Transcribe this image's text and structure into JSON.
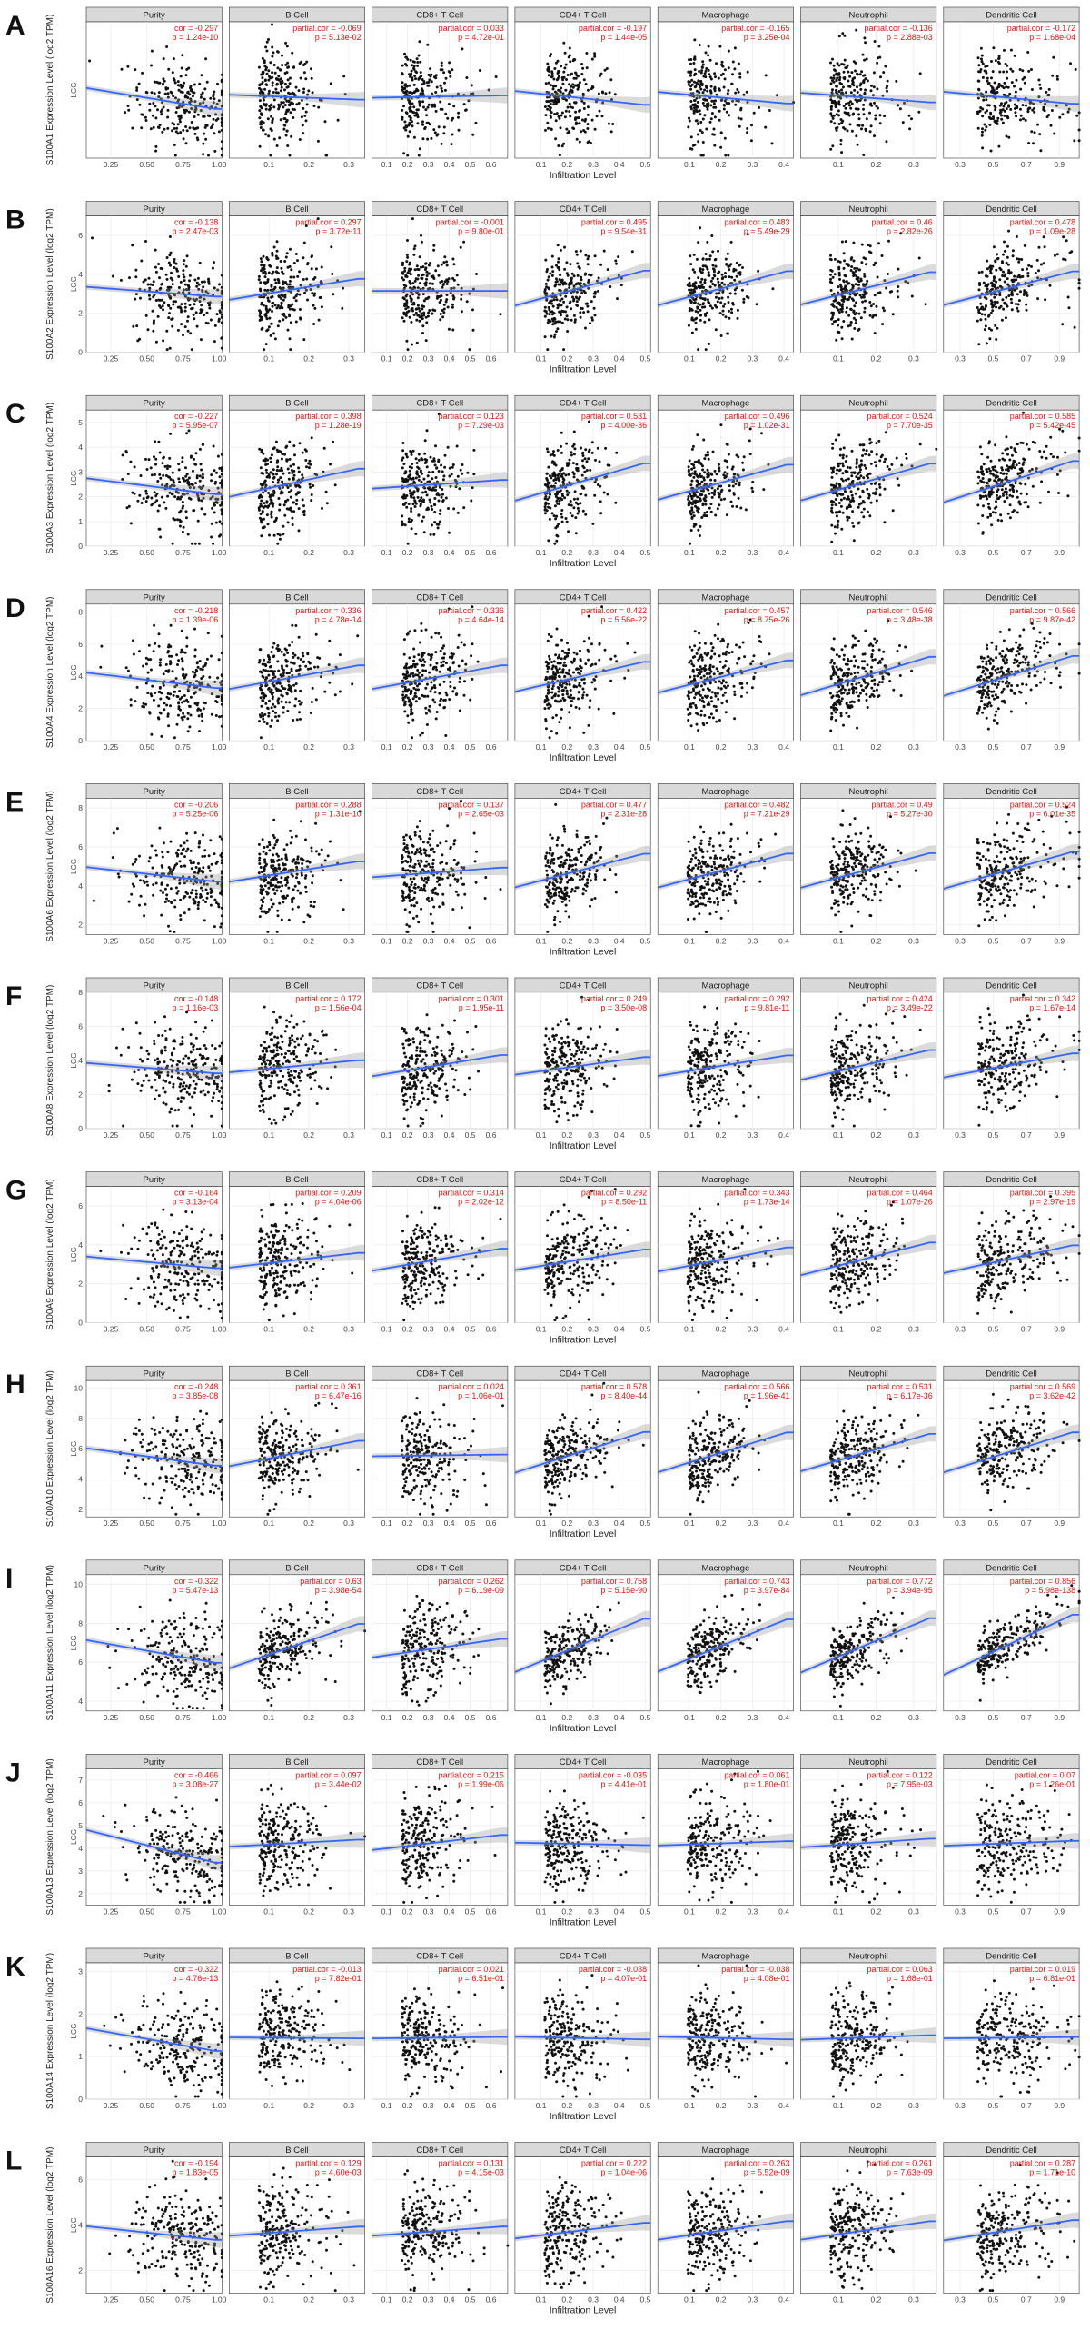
{
  "chart_data": {
    "type": "scatter",
    "cancer_label": "LGG",
    "xlabel": "Infiltration Level",
    "facets": [
      "Purity",
      "B Cell",
      "CD8+ T Cell",
      "CD4+ T Cell",
      "Macrophage",
      "Neutrophil",
      "Dendritic Cell"
    ],
    "x_ticks": [
      [
        "0.25",
        "0.50",
        "0.75",
        "1.00"
      ],
      [
        "0.1",
        "0.2",
        "0.3"
      ],
      [
        "0.1",
        "0.2",
        "0.3",
        "0.4",
        "0.5",
        "0.6"
      ],
      [
        "0.1",
        "0.2",
        "0.3",
        "0.4",
        "0.5"
      ],
      [
        "0.1",
        "0.2",
        "0.3",
        "0.4"
      ],
      [
        "0.1",
        "0.2",
        "0.3"
      ],
      [
        "0.3",
        "0.5",
        "0.7",
        "0.9"
      ]
    ],
    "x_ranges": [
      [
        0.08,
        1.02
      ],
      [
        0.0,
        0.34
      ],
      [
        0.03,
        0.68
      ],
      [
        0.0,
        0.52
      ],
      [
        0.0,
        0.43
      ],
      [
        0.0,
        0.36
      ],
      [
        0.2,
        1.02
      ]
    ],
    "panels": [
      {
        "letter": "A",
        "gene": "S100A1",
        "ylabel": "S100A1 Expression Level (log2 TPM)",
        "yticks": [],
        "ylim": [
          0,
          6
        ],
        "cor": [
          "-0.297",
          "-0.069",
          "0.033",
          "-0.197",
          "-0.165",
          "-0.136",
          "-0.172"
        ],
        "p": [
          "1.24e-10",
          "5.13e-02",
          "4.72e-01",
          "1.44e-05",
          "3.25e-04",
          "2.88e-03",
          "1.68e-04"
        ]
      },
      {
        "letter": "B",
        "gene": "S100A2",
        "ylabel": "S100A2 Expression Level (log2 TPM)",
        "yticks": [
          "0",
          "2",
          "4",
          "6"
        ],
        "ylim": [
          0,
          7
        ],
        "cor": [
          "-0.138",
          "0.297",
          "-0.001",
          "0.495",
          "0.483",
          "0.46",
          "0.478"
        ],
        "p": [
          "2.47e-03",
          "3.72e-11",
          "9.80e-01",
          "9.54e-31",
          "5.49e-29",
          "2.82e-26",
          "1.09e-28"
        ]
      },
      {
        "letter": "C",
        "gene": "S100A3",
        "ylabel": "S100A3 Expression Level (log2 TPM)",
        "yticks": [
          "0",
          "1",
          "2",
          "3",
          "4",
          "5"
        ],
        "ylim": [
          0,
          5.5
        ],
        "cor": [
          "-0.227",
          "0.398",
          "0.123",
          "0.531",
          "0.496",
          "0.524",
          "0.585"
        ],
        "p": [
          "5.95e-07",
          "1.28e-19",
          "7.29e-03",
          "4.00e-36",
          "1.02e-31",
          "7.70e-35",
          "5.42e-45"
        ]
      },
      {
        "letter": "D",
        "gene": "S100A4",
        "ylabel": "S100A4 Expression Level (log2 TPM)",
        "yticks": [
          "0",
          "2",
          "4",
          "6",
          "8"
        ],
        "ylim": [
          0,
          8.5
        ],
        "cor": [
          "-0.218",
          "0.336",
          "0.336",
          "0.422",
          "0.457",
          "0.546",
          "0.566"
        ],
        "p": [
          "1.39e-06",
          "4.78e-14",
          "4.64e-14",
          "5.56e-22",
          "8.75e-26",
          "3.48e-38",
          "9.87e-42"
        ]
      },
      {
        "letter": "E",
        "gene": "S100A6",
        "ylabel": "S100A6 Expression Level (log2 TPM)",
        "yticks": [
          "2",
          "4",
          "6",
          "8"
        ],
        "ylim": [
          1.5,
          8.5
        ],
        "cor": [
          "-0.206",
          "0.288",
          "0.137",
          "0.477",
          "0.482",
          "0.49",
          "0.524"
        ],
        "p": [
          "5.25e-06",
          "1.31e-10",
          "2.65e-03",
          "2.31e-28",
          "7.21e-29",
          "5.27e-30",
          "6.01e-35"
        ]
      },
      {
        "letter": "F",
        "gene": "S100A8",
        "ylabel": "S100A8 Expression Level (log2 TPM)",
        "yticks": [
          "0",
          "2",
          "4",
          "6",
          "8"
        ],
        "ylim": [
          0,
          8
        ],
        "cor": [
          "-0.148",
          "0.172",
          "0.301",
          "0.249",
          "0.292",
          "0.424",
          "0.342"
        ],
        "p": [
          "1.16e-03",
          "1.56e-04",
          "1.95e-11",
          "3.50e-08",
          "9.81e-11",
          "3.49e-22",
          "1.67e-14"
        ]
      },
      {
        "letter": "G",
        "gene": "S100A9",
        "ylabel": "S100A9 Expression Level (log2 TPM)",
        "yticks": [
          "0",
          "2",
          "4",
          "6"
        ],
        "ylim": [
          0,
          7
        ],
        "cor": [
          "-0.164",
          "0.209",
          "0.314",
          "0.292",
          "0.343",
          "0.464",
          "0.395"
        ],
        "p": [
          "3.13e-04",
          "4.04e-06",
          "2.02e-12",
          "8.50e-11",
          "1.73e-14",
          "1.07e-26",
          "2.97e-19"
        ]
      },
      {
        "letter": "H",
        "gene": "S100A10",
        "ylabel": "S100A10 Expression Level (log2 TPM)",
        "yticks": [
          "2",
          "4",
          "6",
          "8",
          "10"
        ],
        "ylim": [
          1.5,
          10.5
        ],
        "cor": [
          "-0.248",
          "0.361",
          "0.024",
          "0.578",
          "0.566",
          "0.531",
          "0.569"
        ],
        "p": [
          "3.85e-08",
          "6.47e-16",
          "1.06e-01",
          "8.40e-44",
          "1.96e-41",
          "6.17e-36",
          "3.62e-42"
        ]
      },
      {
        "letter": "I",
        "gene": "S100A11",
        "ylabel": "S100A11 Expression Level (log2 TPM)",
        "yticks": [
          "4",
          "6",
          "8",
          "10"
        ],
        "ylim": [
          3.5,
          10.5
        ],
        "cor": [
          "-0.322",
          "0.63",
          "0.262",
          "0.758",
          "0.743",
          "0.772",
          "0.856"
        ],
        "p": [
          "5.47e-13",
          "3.98e-54",
          "6.19e-09",
          "5.15e-90",
          "3.97e-84",
          "3.94e-95",
          "5.98e-138"
        ]
      },
      {
        "letter": "J",
        "gene": "S100A13",
        "ylabel": "S100A13 Expression Level (log2 TPM)",
        "yticks": [
          "2",
          "3",
          "4",
          "5",
          "6",
          "7"
        ],
        "ylim": [
          1.5,
          7.5
        ],
        "cor": [
          "-0.466",
          "0.097",
          "0.215",
          "-0.035",
          "0.061",
          "0.122",
          "0.07"
        ],
        "p": [
          "3.08e-27",
          "3.44e-02",
          "1.99e-06",
          "4.41e-01",
          "1.80e-01",
          "7.95e-03",
          "1.26e-01"
        ]
      },
      {
        "letter": "K",
        "gene": "S100A14",
        "ylabel": "S100A14 Expression Level (log2 TPM)",
        "yticks": [
          "0",
          "1",
          "2",
          "3"
        ],
        "ylim": [
          0,
          3.2
        ],
        "cor": [
          "-0.322",
          "-0.013",
          "0.021",
          "-0.038",
          "-0.038",
          "0.063",
          "0.019"
        ],
        "p": [
          "4.76e-13",
          "7.82e-01",
          "6.51e-01",
          "4.07e-01",
          "4.08e-01",
          "1.68e-01",
          "6.81e-01"
        ]
      },
      {
        "letter": "L",
        "gene": "S100A16",
        "ylabel": "S100A16 Expression Level (log2 TPM)",
        "yticks": [
          "2",
          "4",
          "6"
        ],
        "ylim": [
          1,
          7
        ],
        "cor": [
          "-0.194",
          "0.129",
          "0.131",
          "0.222",
          "0.263",
          "0.261",
          "0.287"
        ],
        "p": [
          "1.83e-05",
          "4.60e-03",
          "4.15e-03",
          "1.04e-06",
          "5.52e-09",
          "7.63e-09",
          "1.71e-10"
        ]
      }
    ]
  }
}
